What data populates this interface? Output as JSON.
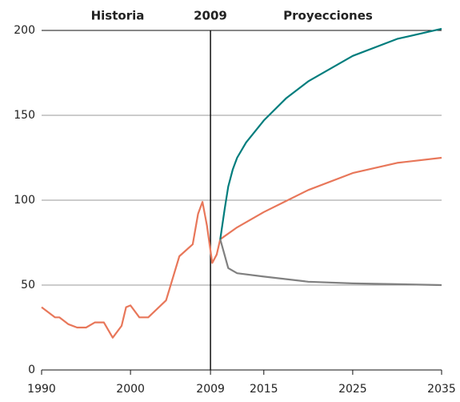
{
  "chart_data": {
    "type": "line",
    "annotations": [
      "Historia",
      "2009",
      "Proyecciones"
    ],
    "xlim": [
      1990,
      2035
    ],
    "xticks": [
      1990,
      2000,
      2009,
      2015,
      2025,
      2035
    ],
    "ylim": [
      0,
      200
    ],
    "yticks": [
      0,
      50,
      100,
      150,
      200
    ],
    "grid": true,
    "series": [
      {
        "color": "#e8775a",
        "x": [
          1990,
          1991.5,
          1992,
          1993,
          1994,
          1995,
          1996,
          1997,
          1998,
          1999,
          1999.5,
          2000,
          2001,
          2002,
          2004,
          2005.5,
          2007,
          2007.6,
          2008.1,
          2008.6,
          2009.2,
          2009.7,
          2010.1,
          2012,
          2015,
          2020,
          2025,
          2030,
          2035
        ],
        "values": [
          37,
          31,
          31,
          27,
          25,
          25,
          28,
          28,
          19,
          26,
          37,
          38,
          31,
          31,
          41,
          67,
          74,
          92,
          99,
          85,
          63,
          68,
          77,
          84,
          93,
          106,
          116,
          122,
          125
        ]
      },
      {
        "color": "#808080",
        "x": [
          2010.1,
          2011,
          2012,
          2015,
          2020,
          2025,
          2030,
          2035
        ],
        "values": [
          77,
          60,
          57,
          55,
          52,
          51,
          50.5,
          50
        ]
      },
      {
        "color": "#007d7d",
        "x": [
          2010.1,
          2010.6,
          2011,
          2011.5,
          2012,
          2013,
          2015,
          2017.5,
          2020,
          2025,
          2030,
          2035
        ],
        "values": [
          77,
          95,
          108,
          118,
          125,
          134,
          147,
          160,
          170,
          185,
          195,
          201
        ]
      }
    ]
  }
}
